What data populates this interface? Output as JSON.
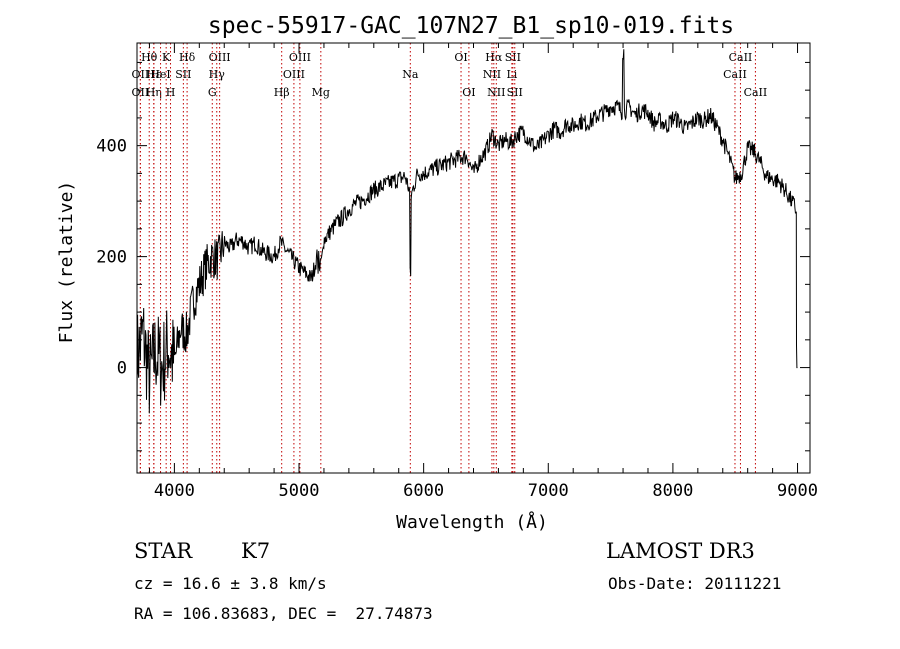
{
  "chart_data": {
    "type": "line",
    "title": "spec-55917-GAC_107N27_B1_sp10-019.fits",
    "xlabel": "Wavelength (Å)",
    "ylabel": "Flux (relative)",
    "xlim": [
      3700,
      9100
    ],
    "ylim": [
      -190,
      585
    ],
    "xticks": [
      4000,
      5000,
      6000,
      7000,
      8000,
      9000
    ],
    "yticks": [
      0,
      200,
      400
    ],
    "grid": false,
    "legend": "none",
    "series": [
      {
        "name": "spectrum",
        "x": [
          3700,
          3750,
          3800,
          3850,
          3900,
          3950,
          4000,
          4050,
          4100,
          4150,
          4200,
          4250,
          4300,
          4350,
          4400,
          4450,
          4500,
          4550,
          4600,
          4650,
          4700,
          4750,
          4800,
          4850,
          4900,
          4950,
          5000,
          5050,
          5100,
          5150,
          5200,
          5250,
          5300,
          5350,
          5400,
          5450,
          5500,
          5550,
          5600,
          5650,
          5700,
          5750,
          5800,
          5850,
          5900,
          5950,
          6000,
          6050,
          6100,
          6150,
          6200,
          6250,
          6300,
          6350,
          6400,
          6450,
          6500,
          6550,
          6600,
          6650,
          6700,
          6750,
          6800,
          6850,
          6900,
          6950,
          7000,
          7050,
          7100,
          7150,
          7200,
          7250,
          7300,
          7350,
          7400,
          7450,
          7500,
          7550,
          7600,
          7650,
          7700,
          7750,
          7800,
          7850,
          7900,
          7950,
          8000,
          8050,
          8100,
          8150,
          8200,
          8250,
          8300,
          8350,
          8400,
          8450,
          8500,
          8550,
          8600,
          8650,
          8700,
          8750,
          8800,
          8850,
          8900,
          8950,
          8980,
          8990,
          9000
        ],
        "y": [
          20,
          60,
          -20,
          30,
          0,
          40,
          10,
          70,
          60,
          120,
          150,
          180,
          200,
          195,
          225,
          215,
          230,
          228,
          215,
          225,
          210,
          205,
          200,
          225,
          210,
          195,
          180,
          170,
          160,
          205,
          230,
          245,
          260,
          270,
          285,
          295,
          300,
          310,
          320,
          325,
          330,
          335,
          340,
          345,
          310,
          350,
          350,
          355,
          360,
          365,
          370,
          375,
          380,
          380,
          350,
          375,
          390,
          420,
          400,
          410,
          405,
          420,
          425,
          410,
          395,
          405,
          420,
          430,
          425,
          440,
          435,
          445,
          440,
          445,
          455,
          460,
          470,
          470,
          460,
          470,
          455,
          465,
          460,
          440,
          445,
          435,
          450,
          445,
          430,
          440,
          450,
          445,
          455,
          435,
          410,
          380,
          340,
          350,
          395,
          390,
          370,
          345,
          340,
          335,
          320,
          300,
          290,
          280,
          0
        ]
      }
    ],
    "line_markers": [
      {
        "label": "Hθ",
        "x": 3798,
        "row": 1
      },
      {
        "label": "OII",
        "x": 3727,
        "row": 2
      },
      {
        "label": "OII",
        "x": 3727,
        "row": 3
      },
      {
        "label": "Hε",
        "x": 3835,
        "row": 2
      },
      {
        "label": "Hη",
        "x": 3835,
        "row": 3
      },
      {
        "label": "HeI",
        "x": 3889,
        "row": 2
      },
      {
        "label": "K",
        "x": 3934,
        "row": 1
      },
      {
        "label": "H",
        "x": 3969,
        "row": 3
      },
      {
        "label": "SII",
        "x": 4072,
        "row": 2
      },
      {
        "label": "Hδ",
        "x": 4102,
        "row": 1
      },
      {
        "label": "OIII",
        "x": 4363,
        "row": 1
      },
      {
        "label": "Hγ",
        "x": 4340,
        "row": 2
      },
      {
        "label": "G",
        "x": 4304,
        "row": 3
      },
      {
        "label": "Hβ",
        "x": 4861,
        "row": 3
      },
      {
        "label": "OIII",
        "x": 5007,
        "row": 1
      },
      {
        "label": "OIII",
        "x": 4959,
        "row": 2
      },
      {
        "label": "Mg",
        "x": 5175,
        "row": 3
      },
      {
        "label": "Na",
        "x": 5893,
        "row": 2
      },
      {
        "label": "OI",
        "x": 6300,
        "row": 1
      },
      {
        "label": "OI",
        "x": 6363,
        "row": 3
      },
      {
        "label": "Hα",
        "x": 6563,
        "row": 1
      },
      {
        "label": "NII",
        "x": 6548,
        "row": 2
      },
      {
        "label": "NII",
        "x": 6583,
        "row": 3
      },
      {
        "label": "SII",
        "x": 6716,
        "row": 1
      },
      {
        "label": "Li",
        "x": 6708,
        "row": 2
      },
      {
        "label": "SII",
        "x": 6731,
        "row": 3
      },
      {
        "label": "CaII",
        "x": 8542,
        "row": 1
      },
      {
        "label": "CaII",
        "x": 8498,
        "row": 2
      },
      {
        "label": "CaII",
        "x": 8662,
        "row": 3
      }
    ]
  },
  "info": {
    "class": "STAR",
    "subclass": "K7",
    "survey": "LAMOST DR3",
    "cz": "cz = 16.6 ± 3.8 km/s",
    "obs_date": "Obs-Date: 20111221",
    "coords": "RA = 106.83683, DEC =  27.74873"
  },
  "colors": {
    "line": "#000000",
    "marker": "#c00000",
    "axis": "#000000"
  }
}
